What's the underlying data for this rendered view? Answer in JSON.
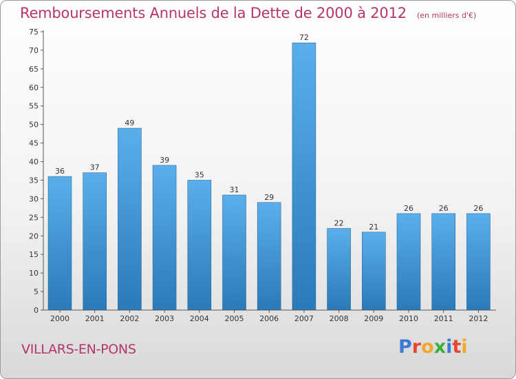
{
  "header": {
    "title": "Remboursements Annuels de la Dette de 2000 à 2012",
    "subtitle": "(en milliers d'€)"
  },
  "footer": {
    "commune": "VILLARS-EN-PONS",
    "brand": "Proxiti"
  },
  "colors": {
    "bar_light": "#5aafea",
    "bar_dark": "#2a7ab8",
    "title": "#b5356b",
    "brand_letters": [
      "#3a7bd5",
      "#e8462e",
      "#f2a82a",
      "#3cae3c",
      "#3a7bd5",
      "#e8462e",
      "#f2a82a"
    ]
  },
  "chart_data": {
    "type": "bar",
    "title": "Remboursements Annuels de la Dette de 2000 à 2012",
    "subtitle": "(en milliers d'€)",
    "categories": [
      "2000",
      "2001",
      "2002",
      "2003",
      "2004",
      "2005",
      "2006",
      "2007",
      "2008",
      "2009",
      "2010",
      "2011",
      "2012"
    ],
    "values": [
      36,
      37,
      49,
      39,
      35,
      31,
      29,
      72,
      22,
      21,
      26,
      26,
      26
    ],
    "ylim": [
      0,
      75
    ],
    "yticks": [
      0,
      5,
      10,
      15,
      20,
      25,
      30,
      35,
      40,
      45,
      50,
      55,
      60,
      65,
      70,
      75
    ],
    "grid": false,
    "legend": "none"
  }
}
